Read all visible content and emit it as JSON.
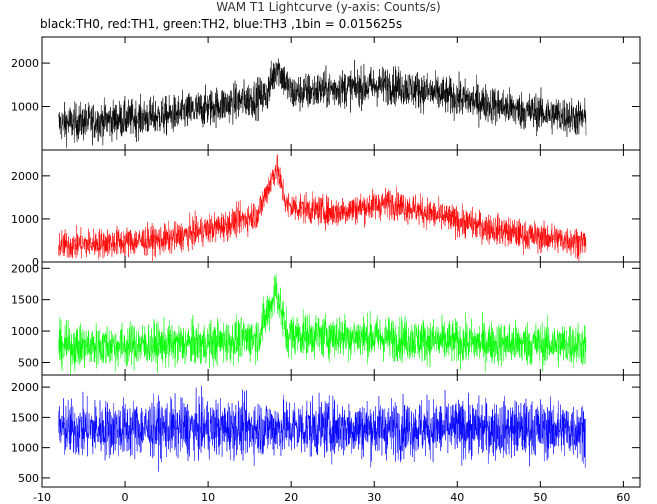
{
  "chart_data": {
    "type": "line",
    "title": "WAM T1 Lightcurve (y-axis: Counts/s)",
    "subtitle": "black:TH0, red:TH1, green:TH2, blue:TH3 ,1bin = 0.015625s",
    "x_ticks": [
      -10,
      0,
      10,
      20,
      30,
      40,
      50,
      60
    ],
    "xlim": [
      -10,
      62
    ],
    "panels": [
      {
        "name": "TH0",
        "color": "#000000",
        "ylim": [
          0,
          2600
        ],
        "y_ticks": [
          1000,
          2000
        ],
        "x_range": [
          -8,
          55.5
        ],
        "profile": [
          [
            -8,
            600
          ],
          [
            5,
            780
          ],
          [
            12,
            1050
          ],
          [
            17,
            1250
          ],
          [
            18.3,
            1950
          ],
          [
            20,
            1300
          ],
          [
            25,
            1400
          ],
          [
            32,
            1500
          ],
          [
            40,
            1200
          ],
          [
            48,
            900
          ],
          [
            55.5,
            720
          ]
        ],
        "noise": 480
      },
      {
        "name": "TH1",
        "color": "#ff0000",
        "ylim": [
          0,
          2600
        ],
        "y_ticks": [
          0,
          1000,
          2000
        ],
        "x_range": [
          -8,
          55.5
        ],
        "profile": [
          [
            -8,
            380
          ],
          [
            5,
            520
          ],
          [
            12,
            850
          ],
          [
            16,
            1120
          ],
          [
            18.2,
            2200
          ],
          [
            19.5,
            1300
          ],
          [
            25,
            1150
          ],
          [
            32,
            1380
          ],
          [
            40,
            950
          ],
          [
            48,
            620
          ],
          [
            55.5,
            460
          ]
        ],
        "noise": 380
      },
      {
        "name": "TH2",
        "color": "#00ff00",
        "ylim": [
          300,
          2100
        ],
        "y_ticks": [
          500,
          1000,
          1500,
          2000
        ],
        "x_range": [
          -8,
          55.5
        ],
        "profile": [
          [
            -8,
            750
          ],
          [
            10,
            800
          ],
          [
            16,
            900
          ],
          [
            18.2,
            1650
          ],
          [
            19.5,
            950
          ],
          [
            30,
            900
          ],
          [
            40,
            820
          ],
          [
            55.5,
            780
          ]
        ],
        "noise": 380
      },
      {
        "name": "TH3",
        "color": "#0000ff",
        "ylim": [
          350,
          2200
        ],
        "y_ticks": [
          500,
          1000,
          1500,
          2000
        ],
        "x_range": [
          -8,
          55.5
        ],
        "profile": [
          [
            -8,
            1300
          ],
          [
            20,
            1330
          ],
          [
            55.5,
            1300
          ]
        ],
        "noise": 520
      }
    ]
  }
}
